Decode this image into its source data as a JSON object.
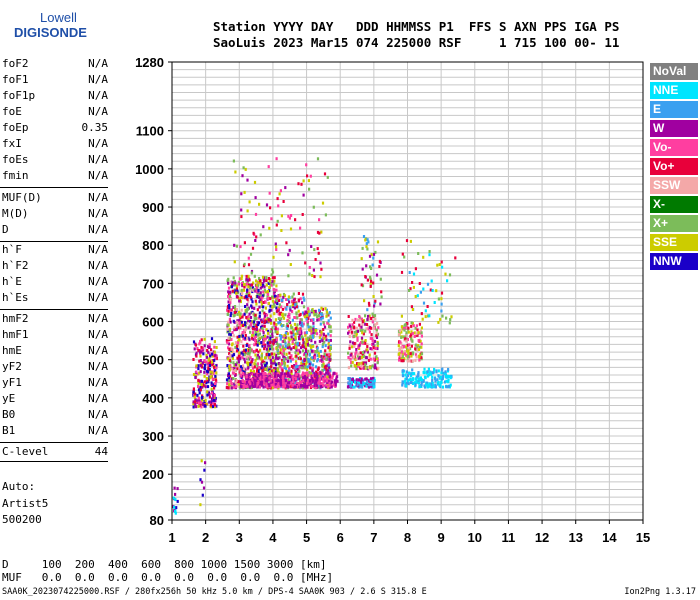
{
  "logo": {
    "line1": "Lowell",
    "line2": "DIGISONDE"
  },
  "header": {
    "line1": "Station YYYY DAY   DDD HHMMSS P1  FFS S AXN PPS IGA PS",
    "line2": "SaoLuis 2023 Mar15 074 225000 RSF     1 715 100 00- 11"
  },
  "params": [
    {
      "name": "foF2",
      "value": "N/A"
    },
    {
      "name": "foF1",
      "value": "N/A"
    },
    {
      "name": "foF1p",
      "value": "N/A"
    },
    {
      "name": "foE",
      "value": "N/A"
    },
    {
      "name": "foEp",
      "value": "0.35"
    },
    {
      "name": "fxI",
      "value": "N/A"
    },
    {
      "name": "foEs",
      "value": "N/A"
    },
    {
      "name": "fmin",
      "value": "N/A"
    },
    {
      "name": "MUF(D)",
      "value": "N/A"
    },
    {
      "name": "M(D)",
      "value": "N/A"
    },
    {
      "name": "D",
      "value": "N/A"
    },
    {
      "name": "h`F",
      "value": "N/A"
    },
    {
      "name": "h`F2",
      "value": "N/A"
    },
    {
      "name": "h`E",
      "value": "N/A"
    },
    {
      "name": "h`Es",
      "value": "N/A"
    },
    {
      "name": "hmF2",
      "value": "N/A"
    },
    {
      "name": "hmF1",
      "value": "N/A"
    },
    {
      "name": "hmE",
      "value": "N/A"
    },
    {
      "name": "yF2",
      "value": "N/A"
    },
    {
      "name": "yF1",
      "value": "N/A"
    },
    {
      "name": "yE",
      "value": "N/A"
    },
    {
      "name": "B0",
      "value": "N/A"
    },
    {
      "name": "B1",
      "value": "N/A"
    },
    {
      "name": "C-level",
      "value": "44"
    }
  ],
  "auto": {
    "line1": "Auto:",
    "line2": "Artist5",
    "line3": "500200"
  },
  "legend": [
    {
      "label": "NoVal",
      "color": "#808080"
    },
    {
      "label": "NNE",
      "color": "#00e5ff"
    },
    {
      "label": "E",
      "color": "#3aa0f0"
    },
    {
      "label": "W",
      "color": "#a000a0"
    },
    {
      "label": "Vo-",
      "color": "#ff3ea0"
    },
    {
      "label": "Vo+",
      "color": "#e8003a"
    },
    {
      "label": "SSW",
      "color": "#f4a8a8"
    },
    {
      "label": "X-",
      "color": "#007a00"
    },
    {
      "label": "X+",
      "color": "#7cbc5a"
    },
    {
      "label": "SSE",
      "color": "#cccc00"
    },
    {
      "label": "NNW",
      "color": "#1a00c8"
    }
  ],
  "footer": {
    "d_row": "D     100  200  400  600  800 1000 1500 3000 [km]",
    "muf_row": "MUF   0.0  0.0  0.0  0.0  0.0  0.0  0.0  0.0 [MHz]",
    "bottom": "SAA0K_2023074225000.RSF / 280fx256h 50 kHz 5.0 km / DPS-4 SAA0K 903 / 2.6 S 315.8 E",
    "version": "Ion2Png 1.3.17"
  },
  "chart_data": {
    "type": "scatter",
    "xlim": [
      1,
      15
    ],
    "ylim": [
      80,
      1280
    ],
    "x_ticks": [
      "1",
      "2",
      "3",
      "4",
      "5",
      "6",
      "7",
      "8",
      "9",
      "10",
      "11",
      "12",
      "13",
      "14",
      "15"
    ],
    "y_ticks": [
      {
        "value": 80,
        "label": "80"
      },
      {
        "value": 200,
        "label": "200"
      },
      {
        "value": 300,
        "label": "300"
      },
      {
        "value": 400,
        "label": "400"
      },
      {
        "value": 500,
        "label": "500"
      },
      {
        "value": 600,
        "label": "600"
      },
      {
        "value": 700,
        "label": "700"
      },
      {
        "value": 800,
        "label": "800"
      },
      {
        "value": 900,
        "label": "900"
      },
      {
        "value": 1000,
        "label": "1000"
      },
      {
        "value": 1100,
        "label": "1100"
      },
      {
        "value": 1280,
        "label": "1280"
      }
    ],
    "grid": true,
    "clusters": [
      {
        "colors": [
          "#a000a0",
          "#e8003a",
          "#1a00c8",
          "#ff3ea0",
          "#cccc00"
        ],
        "x": [
          1.6,
          2.3
        ],
        "y": [
          380,
          560
        ],
        "n": 260
      },
      {
        "colors": [
          "#a000a0",
          "#e8003a",
          "#ff3ea0",
          "#1a00c8",
          "#cccc00",
          "#7cbc5a",
          "#f4a8a8"
        ],
        "x": [
          2.6,
          3.4
        ],
        "y": [
          430,
          720
        ],
        "n": 520
      },
      {
        "colors": [
          "#a000a0",
          "#e8003a",
          "#ff3ea0",
          "#cccc00",
          "#1a00c8",
          "#7cbc5a"
        ],
        "x": [
          3.4,
          4.1
        ],
        "y": [
          430,
          720
        ],
        "n": 480
      },
      {
        "colors": [
          "#a000a0",
          "#e8003a",
          "#cccc00",
          "#ff3ea0",
          "#3aa0f0",
          "#7cbc5a"
        ],
        "x": [
          4.1,
          4.9
        ],
        "y": [
          430,
          680
        ],
        "n": 420
      },
      {
        "colors": [
          "#cccc00",
          "#a000a0",
          "#e8003a",
          "#ff3ea0",
          "#3aa0f0",
          "#7cbc5a"
        ],
        "x": [
          4.9,
          5.7
        ],
        "y": [
          430,
          640
        ],
        "n": 380
      },
      {
        "colors": [
          "#a000a0",
          "#ff3ea0"
        ],
        "x": [
          3.0,
          5.9
        ],
        "y": [
          432,
          470
        ],
        "n": 420
      },
      {
        "colors": [
          "#cccc00",
          "#e8003a",
          "#a000a0",
          "#7cbc5a",
          "#ff3ea0",
          "#f4a8a8"
        ],
        "x": [
          6.2,
          7.1
        ],
        "y": [
          480,
          620
        ],
        "n": 220
      },
      {
        "colors": [
          "#3aa0f0",
          "#00e5ff",
          "#a000a0"
        ],
        "x": [
          6.2,
          7.0
        ],
        "y": [
          432,
          455
        ],
        "n": 110
      },
      {
        "colors": [
          "#cccc00",
          "#e8003a",
          "#ff3ea0",
          "#f4a8a8",
          "#7cbc5a"
        ],
        "x": [
          7.7,
          8.4
        ],
        "y": [
          500,
          600
        ],
        "n": 160
      },
      {
        "colors": [
          "#3aa0f0",
          "#00e5ff"
        ],
        "x": [
          7.8,
          9.3
        ],
        "y": [
          432,
          480
        ],
        "n": 170
      },
      {
        "colors": [
          "#a000a0",
          "#e8003a",
          "#ff3ea0",
          "#cccc00",
          "#7cbc5a"
        ],
        "x": [
          2.8,
          5.6
        ],
        "y": [
          720,
          1040
        ],
        "n": 110
      },
      {
        "colors": [
          "#e8003a",
          "#a000a0",
          "#cccc00",
          "#7cbc5a",
          "#3aa0f0"
        ],
        "x": [
          6.6,
          7.2
        ],
        "y": [
          620,
          830
        ],
        "n": 50
      },
      {
        "colors": [
          "#e8003a",
          "#cccc00",
          "#7cbc5a",
          "#3aa0f0",
          "#00e5ff"
        ],
        "x": [
          7.8,
          9.4
        ],
        "y": [
          600,
          820
        ],
        "n": 60
      },
      {
        "colors": [
          "#1a00c8",
          "#a000a0",
          "#00e5ff"
        ],
        "x": [
          1.0,
          1.2
        ],
        "y": [
          100,
          170
        ],
        "n": 14
      },
      {
        "colors": [
          "#1a00c8",
          "#a000a0",
          "#cccc00"
        ],
        "x": [
          1.8,
          2.0
        ],
        "y": [
          120,
          240
        ],
        "n": 8
      }
    ]
  }
}
